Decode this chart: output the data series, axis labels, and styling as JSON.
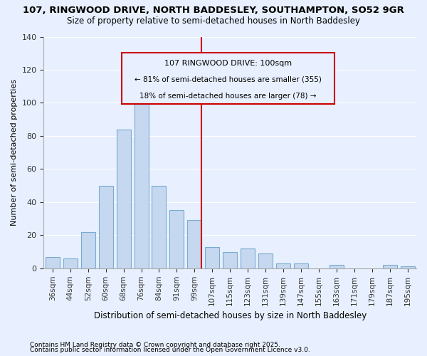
{
  "title1": "107, RINGWOOD DRIVE, NORTH BADDESLEY, SOUTHAMPTON, SO52 9GR",
  "title2": "Size of property relative to semi-detached houses in North Baddesley",
  "xlabel": "Distribution of semi-detached houses by size in North Baddesley",
  "ylabel": "Number of semi-detached properties",
  "footnote1": "Contains HM Land Registry data © Crown copyright and database right 2025.",
  "footnote2": "Contains public sector information licensed under the Open Government Licence v3.0.",
  "annotation_title": "107 RINGWOOD DRIVE: 100sqm",
  "annotation_line1": "← 81% of semi-detached houses are smaller (355)",
  "annotation_line2": "18% of semi-detached houses are larger (78) →",
  "categories": [
    "36sqm",
    "44sqm",
    "52sqm",
    "60sqm",
    "68sqm",
    "76sqm",
    "84sqm",
    "91sqm",
    "99sqm",
    "107sqm",
    "115sqm",
    "123sqm",
    "131sqm",
    "139sqm",
    "147sqm",
    "155sqm",
    "163sqm",
    "171sqm",
    "179sqm",
    "187sqm",
    "195sqm"
  ],
  "values": [
    7,
    6,
    22,
    50,
    84,
    104,
    50,
    35,
    29,
    13,
    10,
    12,
    9,
    3,
    3,
    0,
    2,
    0,
    0,
    2,
    1
  ],
  "bar_color": "#c5d8f0",
  "bar_edge_color": "#7aaad0",
  "vline_x_index": 8,
  "vline_color": "#cc0000",
  "annotation_box_color": "#cc0000",
  "background_color": "#e8f0ff",
  "grid_color": "#ffffff",
  "ylim": [
    0,
    140
  ],
  "yticks": [
    0,
    20,
    40,
    60,
    80,
    100,
    120,
    140
  ]
}
